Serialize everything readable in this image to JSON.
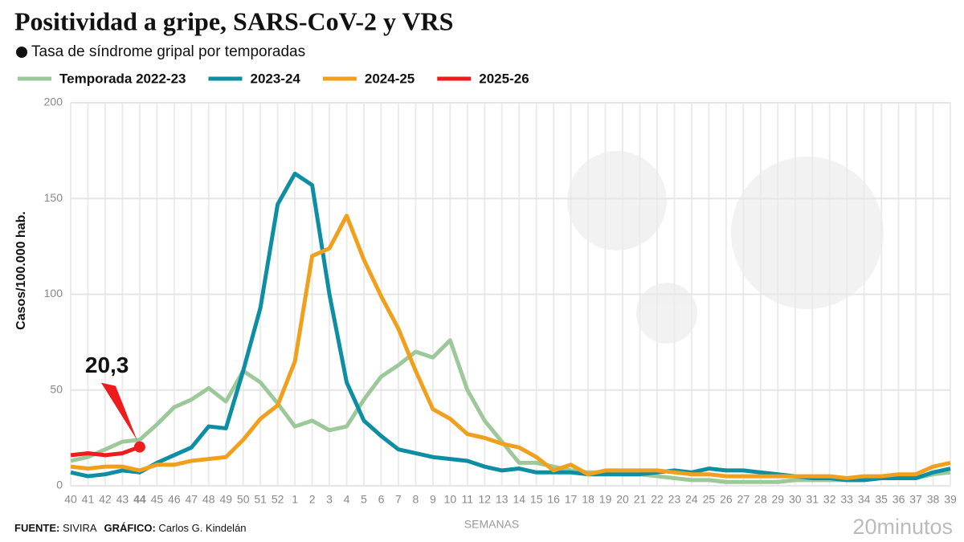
{
  "chart_data": {
    "type": "line",
    "title": "Positividad a gripe, SARS-CoV-2 y VRS",
    "subtitle": "Tasa de síndrome gripal por temporadas",
    "y_label": "Casos/100.000 hab.",
    "x_label": "SEMANAS",
    "source_label": "FUENTE:",
    "source": "SIVIRA",
    "credit_label": "GRÁFICO:",
    "credit": "Carlos G. Kindelán",
    "logo": "20minutos",
    "categories": [
      "40",
      "41",
      "42",
      "43",
      "44",
      "45",
      "46",
      "47",
      "48",
      "49",
      "50",
      "51",
      "52",
      "1",
      "2",
      "3",
      "4",
      "5",
      "6",
      "7",
      "8",
      "9",
      "10",
      "11",
      "12",
      "13",
      "14",
      "15",
      "16",
      "17",
      "18",
      "19",
      "20",
      "21",
      "22",
      "23",
      "24",
      "25",
      "26",
      "27",
      "28",
      "29",
      "30",
      "31",
      "32",
      "33",
      "34",
      "35",
      "36",
      "37",
      "38",
      "39"
    ],
    "series": [
      {
        "name": "Temporada 2022-23",
        "color": "#9dc99a",
        "values": [
          13,
          15,
          19,
          23,
          24,
          32,
          41,
          45,
          51,
          44,
          60,
          54,
          43,
          31,
          34,
          29,
          31,
          45,
          57,
          63,
          70,
          67,
          76,
          50,
          34,
          23,
          12,
          12,
          10,
          8,
          7,
          7,
          6,
          6,
          5,
          4,
          3,
          3,
          2,
          2,
          2,
          2,
          3,
          3,
          3,
          3,
          3,
          4,
          4,
          4,
          6,
          7
        ]
      },
      {
        "name": "2023-24",
        "color": "#0e8ea3",
        "values": [
          7,
          5,
          6,
          8,
          7,
          12,
          16,
          20,
          31,
          30,
          60,
          93,
          147,
          163,
          157,
          100,
          54,
          34,
          26,
          19,
          17,
          15,
          14,
          13,
          10,
          8,
          9,
          7,
          7,
          7,
          6,
          6,
          6,
          6,
          7,
          8,
          7,
          9,
          8,
          8,
          7,
          6,
          5,
          4,
          4,
          3,
          3,
          4,
          4,
          4,
          7,
          9
        ]
      },
      {
        "name": "2024-25",
        "color": "#f0a01c",
        "values": [
          10,
          9,
          10,
          10,
          8,
          11,
          11,
          13,
          14,
          15,
          24,
          35,
          42,
          65,
          120,
          124,
          141,
          118,
          99,
          82,
          60,
          40,
          35,
          27,
          25,
          22,
          20,
          15,
          8,
          11,
          6,
          8,
          8,
          8,
          8,
          7,
          6,
          6,
          5,
          5,
          5,
          5,
          5,
          5,
          5,
          4,
          5,
          5,
          6,
          6,
          10,
          12
        ]
      },
      {
        "name": "2025-26",
        "color": "#ee1c1c",
        "values": [
          16,
          17,
          16,
          17,
          20.3,
          null,
          null,
          null,
          null,
          null,
          null,
          null,
          null,
          null,
          null,
          null,
          null,
          null,
          null,
          null,
          null,
          null,
          null,
          null,
          null,
          null,
          null,
          null,
          null,
          null,
          null,
          null,
          null,
          null,
          null,
          null,
          null,
          null,
          null,
          null,
          null,
          null,
          null,
          null,
          null,
          null,
          null,
          null,
          null,
          null,
          null,
          null
        ],
        "value_labels": [
          null,
          null,
          null,
          null,
          "20,3",
          null,
          null,
          null,
          null,
          null,
          null,
          null,
          null,
          null,
          null,
          null,
          null,
          null,
          null,
          null,
          null,
          null,
          null,
          null,
          null,
          null,
          null,
          null,
          null,
          null,
          null,
          null,
          null,
          null,
          null,
          null,
          null,
          null,
          null,
          null,
          null,
          null,
          null,
          null,
          null,
          null,
          null,
          null,
          null,
          null,
          null,
          null
        ]
      }
    ],
    "ylim": [
      0,
      200
    ],
    "yticks": [
      0,
      50,
      100,
      150,
      200
    ],
    "grid": true
  }
}
